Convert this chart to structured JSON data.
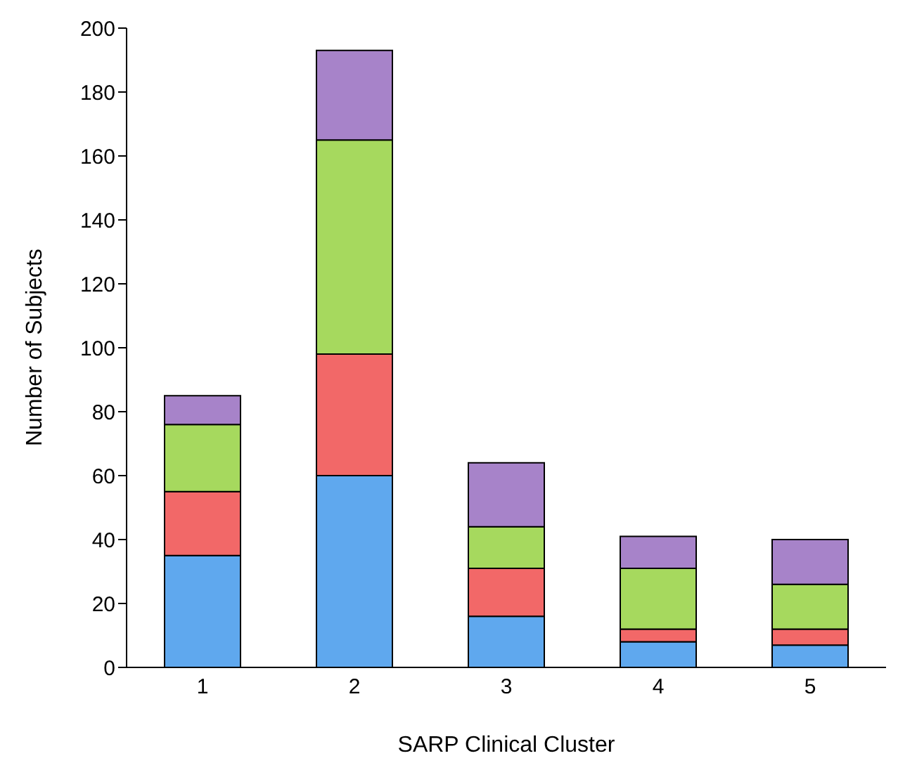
{
  "chart_data": {
    "type": "bar",
    "xlabel": "SARP Clinical Cluster",
    "ylabel": "Number of Subjects",
    "categories": [
      "1",
      "2",
      "3",
      "4",
      "5"
    ],
    "stacked": true,
    "ylim": [
      0,
      200
    ],
    "yticks": [
      0,
      20,
      40,
      60,
      80,
      100,
      120,
      140,
      160,
      180,
      200
    ],
    "grid": false,
    "legend": false,
    "series": [
      {
        "color": "#5fa8ee",
        "values": [
          35,
          60,
          16,
          8,
          7
        ]
      },
      {
        "color": "#f26868",
        "values": [
          20,
          38,
          15,
          4,
          5
        ]
      },
      {
        "color": "#a6d95e",
        "values": [
          21,
          67,
          13,
          19,
          14
        ]
      },
      {
        "color": "#a783c9",
        "values": [
          9,
          28,
          20,
          10,
          14
        ]
      }
    ]
  }
}
